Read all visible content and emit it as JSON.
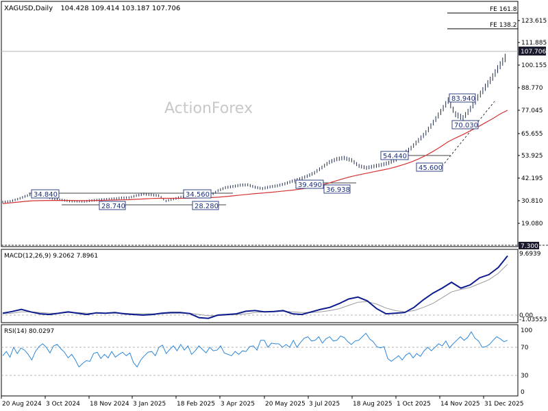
{
  "header": {
    "symbol": "XAGUSD,Daily",
    "ohlc": "104.428 109.414 103.187 107.706"
  },
  "watermark": "ActionForex",
  "colors": {
    "candle": "#1e2a4a",
    "ma": "#d63031",
    "macd": "#0b1a8c",
    "signal": "#9a9a9a",
    "rsi": "#2a86d8",
    "price_tag_bg": "#1a1a2e",
    "box_border": "#1d2f7a",
    "box_text": "#1d2f7a"
  },
  "chart_data": [
    {
      "type": "line",
      "panel": "price",
      "series": [
        {
          "values": [
            30.0,
            30.4,
            31.5,
            33.0,
            34.2,
            34.0,
            32.6,
            31.6,
            31.1,
            30.5,
            30.4,
            30.3,
            30.8,
            31.2,
            31.5,
            31.8,
            32.2,
            32.3,
            33.4,
            34.2,
            33.8,
            33.4,
            30.6,
            31.6,
            32.6,
            33.2,
            32.6,
            32.8,
            33.6,
            36.0,
            37.6,
            38.2,
            38.9,
            39.1,
            37.8,
            37.1,
            38.0,
            38.6,
            39.6,
            41.0,
            42.1,
            43.6,
            45.4,
            48.2,
            51.0,
            52.6,
            53.2,
            52.0,
            49.0,
            48.0,
            48.8,
            49.6,
            50.6,
            52.4,
            55.4,
            58.4,
            62.4,
            66.4,
            71.8,
            77.4,
            83.4,
            76.2,
            74.2,
            79.0,
            85.0,
            90.4,
            95.8,
            102.0,
            107.7
          ]
        },
        {
          "values": [
            29.2,
            29.6,
            30.0,
            30.4,
            30.7,
            30.8,
            30.9,
            30.9,
            30.9,
            30.9,
            30.8,
            30.8,
            30.8,
            30.9,
            31.0,
            31.1,
            31.2,
            31.3,
            31.5,
            31.7,
            31.9,
            32.0,
            32.0,
            32.0,
            32.0,
            32.1,
            32.2,
            32.3,
            32.4,
            32.6,
            32.9,
            33.3,
            33.7,
            34.1,
            34.5,
            34.8,
            35.1,
            35.5,
            35.9,
            36.3,
            36.8,
            37.4,
            38.1,
            39.0,
            40.1,
            41.3,
            42.5,
            43.5,
            44.4,
            45.2,
            46.0,
            46.8,
            47.6,
            48.6,
            49.8,
            51.1,
            52.7,
            54.6,
            56.8,
            59.2,
            61.8,
            63.8,
            65.6,
            67.6,
            69.6,
            71.8,
            74.0,
            76.4,
            78.4
          ]
        }
      ],
      "y_ticks": [
        "123.615",
        "111.885",
        "100.155",
        "88.770",
        "77.045",
        "65.655",
        "53.925",
        "42.195",
        "30.810",
        "19.080",
        "7.300"
      ],
      "x_ticks": [
        "20 Aug 2024",
        "3 Oct 2024",
        "18 Nov 2024",
        "3 Jan 2025",
        "18 Feb 2025",
        "3 Apr 2025",
        "20 May 2025",
        "3 Jul 2025",
        "18 Aug 2025",
        "1 Oct 2025",
        "14 Nov 2025",
        "31 Dec 2025"
      ],
      "ylim": [
        7.3,
        135.0
      ],
      "annotations": [
        "34.840",
        "34.560",
        "28.740",
        "28.280",
        "39.490",
        "36.938",
        "54.440",
        "45.600",
        "70.030",
        "83.940",
        "FE 161.8",
        "FE 138.2"
      ],
      "last_price_label": "107.706",
      "grid": false
    },
    {
      "type": "line",
      "panel": "macd",
      "label": "MACD(12,26,9) 9.2062 7.8961",
      "series": [
        {
          "values": [
            0.3,
            0.55,
            0.9,
            0.5,
            0.2,
            0.1,
            0.3,
            0.5,
            0.3,
            0.1,
            0.35,
            0.3,
            0.4,
            0.2,
            0.1,
            0.0,
            0.1,
            0.3,
            0.4,
            0.4,
            0.25,
            -0.4,
            -0.5,
            0.0,
            0.1,
            0.2,
            0.6,
            0.7,
            0.5,
            0.55,
            0.7,
            0.2,
            0.1,
            0.5,
            0.9,
            1.2,
            1.8,
            2.5,
            2.8,
            2.2,
            1.0,
            0.2,
            0.3,
            0.4,
            1.2,
            2.4,
            3.4,
            4.2,
            5.1,
            4.2,
            4.7,
            5.8,
            6.3,
            7.4,
            9.21
          ]
        },
        {
          "values": [
            0.2,
            0.3,
            0.5,
            0.5,
            0.4,
            0.3,
            0.3,
            0.4,
            0.4,
            0.3,
            0.3,
            0.3,
            0.3,
            0.3,
            0.2,
            0.2,
            0.2,
            0.2,
            0.3,
            0.3,
            0.3,
            0.1,
            -0.1,
            -0.1,
            0.0,
            0.1,
            0.2,
            0.4,
            0.5,
            0.5,
            0.6,
            0.5,
            0.4,
            0.4,
            0.5,
            0.7,
            1.0,
            1.5,
            2.0,
            2.1,
            1.7,
            1.1,
            0.7,
            0.5,
            0.7,
            1.2,
            1.8,
            2.7,
            3.6,
            4.0,
            4.3,
            4.9,
            5.5,
            6.5,
            7.9
          ]
        }
      ],
      "y_ticks": [
        "9.6939",
        "0.00",
        "-1.03553"
      ],
      "ylim": [
        -1.03553,
        9.6939
      ]
    },
    {
      "type": "line",
      "panel": "rsi",
      "label": "RSI(14) 80.0297",
      "series": [
        {
          "values": [
            58,
            64,
            56,
            70,
            61,
            69,
            66,
            60,
            52,
            64,
            71,
            75,
            70,
            62,
            72,
            74,
            68,
            63,
            55,
            60,
            52,
            42,
            47,
            51,
            50,
            61,
            63,
            54,
            60,
            55,
            64,
            56,
            60,
            63,
            58,
            62,
            48,
            42,
            52,
            58,
            63,
            64,
            58,
            70,
            73,
            61,
            67,
            72,
            65,
            74,
            66,
            72,
            60,
            65,
            72,
            67,
            62,
            70,
            65,
            66,
            72,
            62,
            60,
            58,
            64,
            60,
            65,
            64,
            71,
            72,
            66,
            80,
            80,
            70,
            76,
            75,
            75,
            70,
            74,
            70,
            80,
            70,
            77,
            83,
            85,
            79,
            80,
            85,
            76,
            82,
            85,
            79,
            80,
            86,
            84,
            78,
            74,
            79,
            80,
            85,
            90,
            82,
            78,
            71,
            69,
            71,
            54,
            50,
            54,
            58,
            52,
            59,
            62,
            55,
            61,
            57,
            65,
            70,
            65,
            70,
            75,
            72,
            79,
            69,
            75,
            80,
            85,
            80,
            84,
            92,
            83,
            79,
            70,
            71,
            74,
            80,
            85,
            82,
            78,
            80
          ]
        }
      ],
      "y_ticks": [
        "100",
        "70",
        "30",
        "0"
      ],
      "ylim": [
        0,
        100
      ]
    }
  ]
}
